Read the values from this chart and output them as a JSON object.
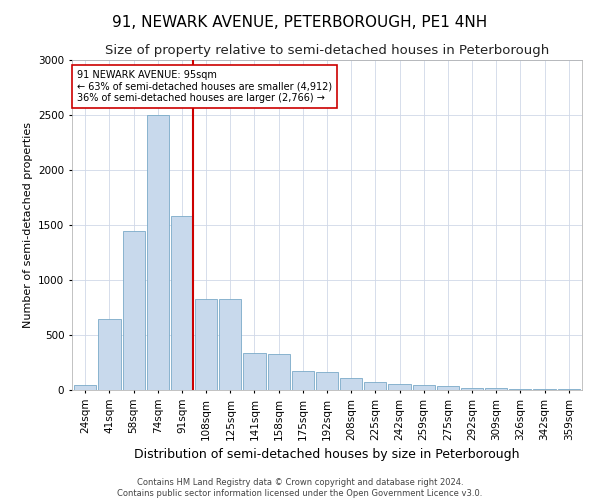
{
  "title": "91, NEWARK AVENUE, PETERBOROUGH, PE1 4NH",
  "subtitle": "Size of property relative to semi-detached houses in Peterborough",
  "xlabel": "Distribution of semi-detached houses by size in Peterborough",
  "ylabel": "Number of semi-detached properties",
  "categories": [
    "24sqm",
    "41sqm",
    "58sqm",
    "74sqm",
    "91sqm",
    "108sqm",
    "125sqm",
    "141sqm",
    "158sqm",
    "175sqm",
    "192sqm",
    "208sqm",
    "225sqm",
    "242sqm",
    "259sqm",
    "275sqm",
    "292sqm",
    "309sqm",
    "326sqm",
    "342sqm",
    "359sqm"
  ],
  "values": [
    50,
    650,
    1450,
    2500,
    1580,
    830,
    830,
    340,
    330,
    170,
    160,
    110,
    70,
    55,
    45,
    35,
    20,
    15,
    10,
    8,
    5
  ],
  "bar_color": "#c8d9ec",
  "bar_edge_color": "#7aaac8",
  "marker_index": 4,
  "marker_color": "#cc0000",
  "annotation_text": "91 NEWARK AVENUE: 95sqm\n← 63% of semi-detached houses are smaller (4,912)\n36% of semi-detached houses are larger (2,766) →",
  "annotation_box_color": "#ffffff",
  "annotation_box_edge": "#cc0000",
  "ylim": [
    0,
    3000
  ],
  "yticks": [
    0,
    500,
    1000,
    1500,
    2000,
    2500,
    3000
  ],
  "title_fontsize": 11,
  "subtitle_fontsize": 9.5,
  "xlabel_fontsize": 9,
  "ylabel_fontsize": 8,
  "tick_fontsize": 7.5,
  "annot_fontsize": 7,
  "footer_text": "Contains HM Land Registry data © Crown copyright and database right 2024.\nContains public sector information licensed under the Open Government Licence v3.0.",
  "background_color": "#ffffff",
  "grid_color": "#d0d8e8"
}
